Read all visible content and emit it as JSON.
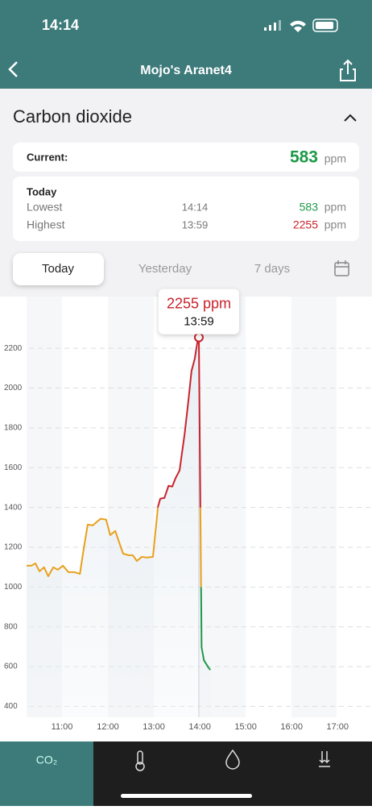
{
  "status_bar": {
    "time": "14:14"
  },
  "header": {
    "title": "Mojo's Aranet4"
  },
  "section": {
    "title": "Carbon dioxide"
  },
  "current": {
    "label": "Current:",
    "value": 583,
    "unit": "ppm"
  },
  "today": {
    "title": "Today",
    "rows": [
      [
        "Lowest",
        "14:14",
        583,
        "ppm"
      ],
      [
        "Highest",
        "13:59",
        2255,
        "ppm"
      ]
    ]
  },
  "tabs": [
    "Today",
    "Yesterday",
    "7 days"
  ],
  "chart_data": {
    "type": "line",
    "x": [
      10.23,
      10.33,
      10.42,
      10.51,
      10.61,
      10.7,
      10.81,
      10.91,
      11.02,
      11.14,
      11.26,
      11.39,
      11.47,
      11.56,
      11.67,
      11.75,
      11.84,
      11.96,
      12.05,
      12.16,
      12.25,
      12.33,
      12.44,
      12.54,
      12.63,
      12.74,
      12.84,
      12.98,
      13.09,
      13.14,
      13.23,
      13.32,
      13.4,
      13.47,
      13.56,
      13.67,
      13.75,
      13.82,
      13.89,
      13.96,
      13.98,
      14.04,
      14.09,
      14.19,
      14.23
    ],
    "series": [
      {
        "values": [
          1107,
          1107,
          1119,
          1079,
          1099,
          1054,
          1099,
          1087,
          1107,
          1075,
          1075,
          1066,
          1188,
          1314,
          1310,
          1326,
          1343,
          1339,
          1261,
          1282,
          1221,
          1168,
          1160,
          1160,
          1131,
          1152,
          1148,
          1152,
          1404,
          1444,
          1448,
          1509,
          1505,
          1546,
          1586,
          1769,
          1932,
          2086,
          2147,
          2249,
          2255,
          697,
          632,
          595,
          583
        ]
      }
    ],
    "color_bands": [
      {
        "below": 1000,
        "color": "#1e9a48"
      },
      {
        "below": 1400,
        "color": "#e8a01c"
      },
      {
        "below": 100000,
        "color": "#c8232c"
      }
    ],
    "xlim": [
      9.65,
      17.75
    ],
    "ylim": [
      345,
      2460
    ],
    "xticks": [
      {
        "value": 11,
        "label": "11:00"
      },
      {
        "value": 12,
        "label": "12:00"
      },
      {
        "value": 13,
        "label": "13:00"
      },
      {
        "value": 14,
        "label": "14:00"
      },
      {
        "value": 15,
        "label": "15:00"
      },
      {
        "value": 16,
        "label": "16:00"
      },
      {
        "value": 17,
        "label": "17:00"
      }
    ],
    "yticks": [
      400,
      600,
      800,
      1000,
      1200,
      1400,
      1600,
      1800,
      2000,
      2200
    ],
    "grid": true,
    "tooltip": {
      "x": 13.98,
      "y": 2255,
      "value_text": "2255 ppm",
      "time": "13:59"
    }
  },
  "tab_bar": {
    "items": [
      "CO₂"
    ]
  }
}
